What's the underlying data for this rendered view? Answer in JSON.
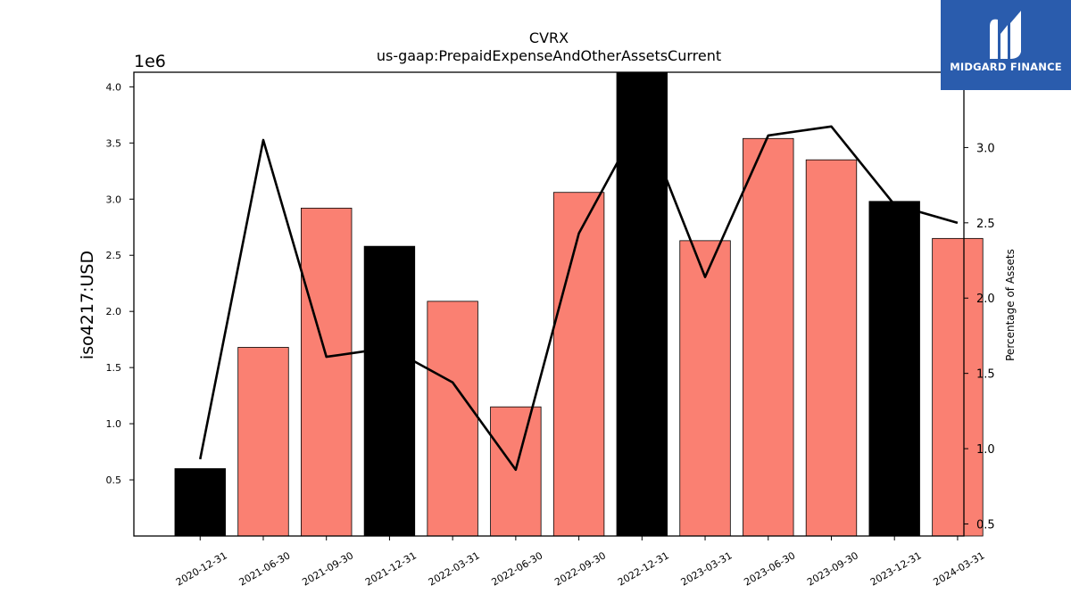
{
  "chart_data": {
    "type": "bar",
    "title": "CVRX",
    "subtitle": "us-gaap:PrepaidExpenseAndOtherAssetsCurrent",
    "ylabel": "iso4217:USD",
    "y2label": "Percentage of Assets",
    "y_offset_label": "1e6",
    "categories": [
      "2020-12-31",
      "2021-06-30",
      "2021-09-30",
      "2021-12-31",
      "2022-03-31",
      "2022-06-30",
      "2022-09-30",
      "2022-12-31",
      "2023-03-31",
      "2023-06-30",
      "2023-09-30",
      "2023-12-31",
      "2024-03-31"
    ],
    "series": [
      {
        "values": [
          600000,
          1680000,
          2920000,
          2580000,
          2090000,
          1150000,
          3060000,
          4130000,
          2630000,
          3540000,
          3350000,
          2980000,
          2650000
        ],
        "colors": [
          "#000000",
          "#fa8072",
          "#fa8072",
          "#000000",
          "#fa8072",
          "#fa8072",
          "#fa8072",
          "#000000",
          "#fa8072",
          "#fa8072",
          "#fa8072",
          "#000000",
          "#fa8072"
        ],
        "axis": "left"
      },
      {
        "type": "line",
        "values": [
          0.93,
          3.05,
          1.61,
          1.67,
          1.44,
          0.86,
          2.43,
          3.2,
          2.14,
          3.08,
          3.14,
          2.62,
          2.5
        ],
        "color": "#000000",
        "axis": "right"
      }
    ],
    "ylim": [
      0,
      4130000
    ],
    "y2lim": [
      0.42,
      3.5
    ],
    "yticks": [
      500000,
      1000000,
      1500000,
      2000000,
      2500000,
      3000000,
      3500000,
      4000000
    ],
    "yticklabels": [
      "0.5",
      "1.0",
      "1.5",
      "2.0",
      "2.5",
      "3.0",
      "3.5",
      "4.0"
    ],
    "y2ticks": [
      0.5,
      1.0,
      1.5,
      2.0,
      2.5,
      3.0
    ],
    "y2ticklabels": [
      "0.5",
      "1.0",
      "1.5",
      "2.0",
      "2.5",
      "3.0"
    ],
    "grid": false
  },
  "logo": {
    "text": "MIDGARD FINANCE"
  }
}
